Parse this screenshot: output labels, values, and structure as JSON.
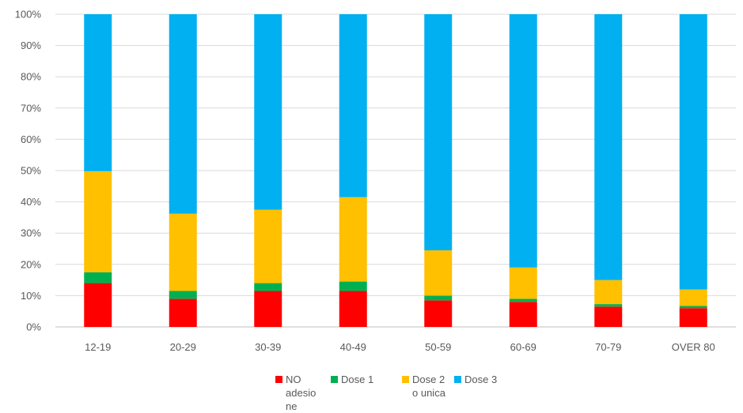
{
  "chart_data": {
    "type": "bar",
    "stacked": true,
    "categories": [
      "12-19",
      "20-29",
      "30-39",
      "40-49",
      "50-59",
      "60-69",
      "70-79",
      "OVER 80"
    ],
    "series": [
      {
        "name": "NO adesione",
        "color": "#FF0000",
        "values": [
          14,
          9,
          11.5,
          11.5,
          8.5,
          8,
          6.5,
          6
        ]
      },
      {
        "name": "Dose 1",
        "color": "#00B050",
        "values": [
          3.5,
          2.5,
          2.5,
          3,
          1.5,
          1,
          0.8,
          0.7
        ]
      },
      {
        "name": "Dose 2 o unica",
        "color": "#FFC000",
        "values": [
          32.3,
          24.7,
          23.5,
          27,
          14.5,
          10,
          7.7,
          5.3
        ]
      },
      {
        "name": "Dose 3",
        "color": "#00B0F0",
        "values": [
          50.2,
          63.8,
          62.5,
          58.5,
          75.5,
          81,
          85,
          88
        ]
      }
    ],
    "yticks": [
      "0%",
      "10%",
      "20%",
      "30%",
      "40%",
      "50%",
      "60%",
      "70%",
      "80%",
      "90%",
      "100%"
    ],
    "ylim": [
      0,
      100
    ],
    "grid": true,
    "legend_position": "bottom",
    "title": "",
    "xlabel": "",
    "ylabel": ""
  }
}
